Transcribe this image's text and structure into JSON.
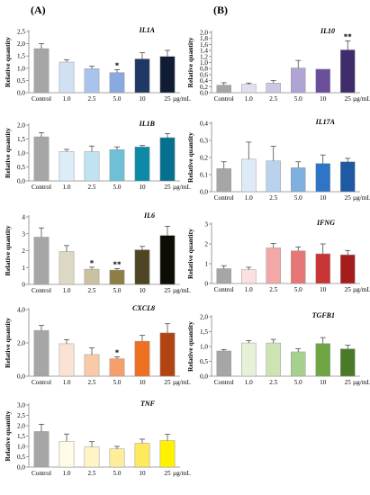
{
  "panels": [
    {
      "letter": "(A)"
    },
    {
      "letter": "(B)"
    }
  ],
  "x_unit": "µg/mL",
  "chart_data": [
    {
      "type": "bar",
      "panel": "(A)",
      "gene": "IL1A",
      "ylabel": "Relative quantity",
      "categories": [
        "Control",
        "1.0",
        "2.5",
        "5.0",
        "10",
        "25"
      ],
      "values": [
        1.8,
        1.25,
        0.98,
        0.82,
        1.38,
        1.48
      ],
      "errors": [
        0.2,
        0.1,
        0.1,
        0.12,
        0.25,
        0.25
      ],
      "significance": [
        "",
        "",
        "",
        "*",
        "",
        ""
      ],
      "ylim": [
        0,
        2.5
      ],
      "yticks": [
        "0,0",
        "0,5",
        "1,0",
        "1,5",
        "2,0",
        "2,5"
      ],
      "ytick_values": [
        0,
        0.5,
        1.0,
        1.5,
        2.0,
        2.5
      ],
      "colors": [
        "#a6a6a6",
        "#d0e1f4",
        "#a9c4ec",
        "#8aa9e1",
        "#1f3864",
        "#101c34"
      ]
    },
    {
      "type": "bar",
      "panel": "(A)",
      "gene": "IL1B",
      "ylabel": "Relative quantity",
      "categories": [
        "Control",
        "1.0",
        "2.5",
        "5.0",
        "10",
        "25"
      ],
      "values": [
        1.58,
        1.05,
        1.05,
        1.12,
        1.22,
        1.55
      ],
      "errors": [
        0.15,
        0.08,
        0.2,
        0.1,
        0.05,
        0.15
      ],
      "significance": [
        "",
        "",
        "",
        "",
        "",
        ""
      ],
      "ylim": [
        0,
        2.0
      ],
      "yticks": [
        "0,0",
        "0,5",
        "1,0",
        "1,5",
        "2,0"
      ],
      "ytick_values": [
        0,
        0.5,
        1.0,
        1.5,
        2.0
      ],
      "colors": [
        "#a6a6a6",
        "#dbeef7",
        "#bfe3f1",
        "#6fbfd6",
        "#0d8aa8",
        "#05708f"
      ]
    },
    {
      "type": "bar",
      "panel": "(A)",
      "gene": "IL6",
      "ylabel": "Relative quantity",
      "categories": [
        "Control",
        "1.0",
        "2.5",
        "5.0",
        "10",
        "25"
      ],
      "values": [
        2.8,
        1.95,
        0.9,
        0.85,
        2.05,
        2.9
      ],
      "errors": [
        0.55,
        0.35,
        0.12,
        0.08,
        0.2,
        0.55
      ],
      "significance": [
        "",
        "",
        "*",
        "**",
        "",
        ""
      ],
      "ylim": [
        0,
        4.0
      ],
      "yticks": [
        "0",
        "1",
        "2",
        "3",
        "4"
      ],
      "ytick_values": [
        0,
        1,
        2,
        3,
        4
      ],
      "colors": [
        "#a6a6a6",
        "#ddd8c4",
        "#c9c19f",
        "#8c7e47",
        "#4d4524",
        "#0d0d06"
      ]
    },
    {
      "type": "bar",
      "panel": "(A)",
      "gene": "CXCL8",
      "ylabel": "Relative quantity",
      "categories": [
        "Control",
        "1.0",
        "2.5",
        "5.0",
        "10",
        "25"
      ],
      "values": [
        2.75,
        1.95,
        1.3,
        1.05,
        2.1,
        2.6
      ],
      "errors": [
        0.3,
        0.25,
        0.4,
        0.12,
        0.35,
        0.55
      ],
      "significance": [
        "",
        "",
        "",
        "*",
        "",
        ""
      ],
      "ylim": [
        0,
        4.0
      ],
      "yticks": [
        "0,0",
        "2,0",
        "4,0"
      ],
      "ytick_values": [
        0,
        2,
        4
      ],
      "colors": [
        "#a6a6a6",
        "#fbe3d3",
        "#f9c9a8",
        "#f5a06b",
        "#ee6f1f",
        "#b24412"
      ]
    },
    {
      "type": "bar",
      "panel": "(A)",
      "gene": "TNF",
      "ylabel": "Relative quantity",
      "categories": [
        "Control",
        "1.0",
        "2.5",
        "5.0",
        "10",
        "25"
      ],
      "values": [
        1.72,
        1.25,
        0.98,
        0.88,
        1.15,
        1.28
      ],
      "errors": [
        0.35,
        0.35,
        0.25,
        0.12,
        0.2,
        0.3
      ],
      "significance": [
        "",
        "",
        "",
        "",
        "",
        ""
      ],
      "ylim": [
        0,
        3.0
      ],
      "yticks": [
        "0,0",
        "0,5",
        "1,0",
        "1,5",
        "2,0",
        "2,5",
        "3,0"
      ],
      "ytick_values": [
        0,
        0.5,
        1.0,
        1.5,
        2.0,
        2.5,
        3.0
      ],
      "colors": [
        "#a6a6a6",
        "#fffbe6",
        "#fff5c4",
        "#ffee99",
        "#ffe95c",
        "#fff200"
      ]
    },
    {
      "type": "bar",
      "panel": "(B)",
      "gene": "IL10",
      "ylabel": "Relative quantity",
      "categories": [
        "Control",
        "1.0",
        "2.5",
        "5.0",
        "10",
        "25"
      ],
      "values": [
        0.25,
        0.28,
        0.32,
        0.82,
        0.78,
        1.42
      ],
      "errors": [
        0.08,
        0.04,
        0.08,
        0.25,
        0.0,
        0.3
      ],
      "significance": [
        "",
        "",
        "",
        "",
        "",
        "**"
      ],
      "ylim": [
        0,
        2.0
      ],
      "yticks": [
        "0,0",
        "0,2",
        "0,4",
        "0,6",
        "0,8",
        "1,0",
        "1,2",
        "1,4",
        "1,6",
        "1,8",
        "2,0"
      ],
      "ytick_values": [
        0,
        0.2,
        0.4,
        0.6,
        0.8,
        1.0,
        1.2,
        1.4,
        1.6,
        1.8,
        2.0
      ],
      "colors": [
        "#a6a6a6",
        "#e4dff0",
        "#cec6e4",
        "#b2a3d5",
        "#6a4e9c",
        "#3f2d6b"
      ]
    },
    {
      "type": "bar",
      "panel": "(B)",
      "gene": "IL17A",
      "ylabel": "Relative quantity",
      "categories": [
        "Control",
        "1.0",
        "2.5",
        "5.0",
        "10",
        "25"
      ],
      "values": [
        0.135,
        0.19,
        0.18,
        0.14,
        0.165,
        0.175
      ],
      "errors": [
        0.04,
        0.1,
        0.085,
        0.035,
        0.05,
        0.02
      ],
      "significance": [
        "",
        "",
        "",
        "",
        "",
        ""
      ],
      "ylim": [
        0,
        0.4
      ],
      "yticks": [
        "0,0",
        "0,1",
        "0,2",
        "0,3",
        "0,4"
      ],
      "ytick_values": [
        0,
        0.1,
        0.2,
        0.3,
        0.4
      ],
      "colors": [
        "#a6a6a6",
        "#deebf7",
        "#b9d3ee",
        "#7fb0e0",
        "#2e75c7",
        "#1d5aa3"
      ]
    },
    {
      "type": "bar",
      "panel": "(B)",
      "gene": "IFNG",
      "ylabel": "Relative quantity",
      "categories": [
        "Control",
        "1.0",
        "2.5",
        "5.0",
        "10",
        "25"
      ],
      "values": [
        0.75,
        0.7,
        1.8,
        1.65,
        1.5,
        1.45
      ],
      "errors": [
        0.15,
        0.12,
        0.22,
        0.2,
        0.5,
        0.22
      ],
      "significance": [
        "",
        "",
        "",
        "",
        "",
        ""
      ],
      "ylim": [
        0,
        3.0
      ],
      "yticks": [
        "0",
        "1",
        "2",
        "3"
      ],
      "ytick_values": [
        0,
        1,
        2,
        3
      ],
      "colors": [
        "#a6a6a6",
        "#fbe0e0",
        "#f3a8a8",
        "#e77777",
        "#c93434",
        "#a61c1c"
      ]
    },
    {
      "type": "bar",
      "panel": "(B)",
      "gene": "TGFB1",
      "ylabel": "Relative quantity",
      "categories": [
        "Control",
        "1.0",
        "2.5",
        "5.0",
        "10",
        "25"
      ],
      "values": [
        0.85,
        1.12,
        1.12,
        0.82,
        1.1,
        0.92
      ],
      "errors": [
        0.05,
        0.08,
        0.12,
        0.1,
        0.2,
        0.12
      ],
      "significance": [
        "",
        "",
        "",
        "",
        "",
        ""
      ],
      "ylim": [
        0,
        2.0
      ],
      "yticks": [
        "0,0",
        "0,5",
        "1,0",
        "1,5",
        "2,0"
      ],
      "ytick_values": [
        0,
        0.5,
        1.0,
        1.5,
        2.0
      ],
      "colors": [
        "#a6a6a6",
        "#e6f1d8",
        "#cde4b2",
        "#a8d08d",
        "#6fa543",
        "#4a7a26"
      ]
    }
  ]
}
